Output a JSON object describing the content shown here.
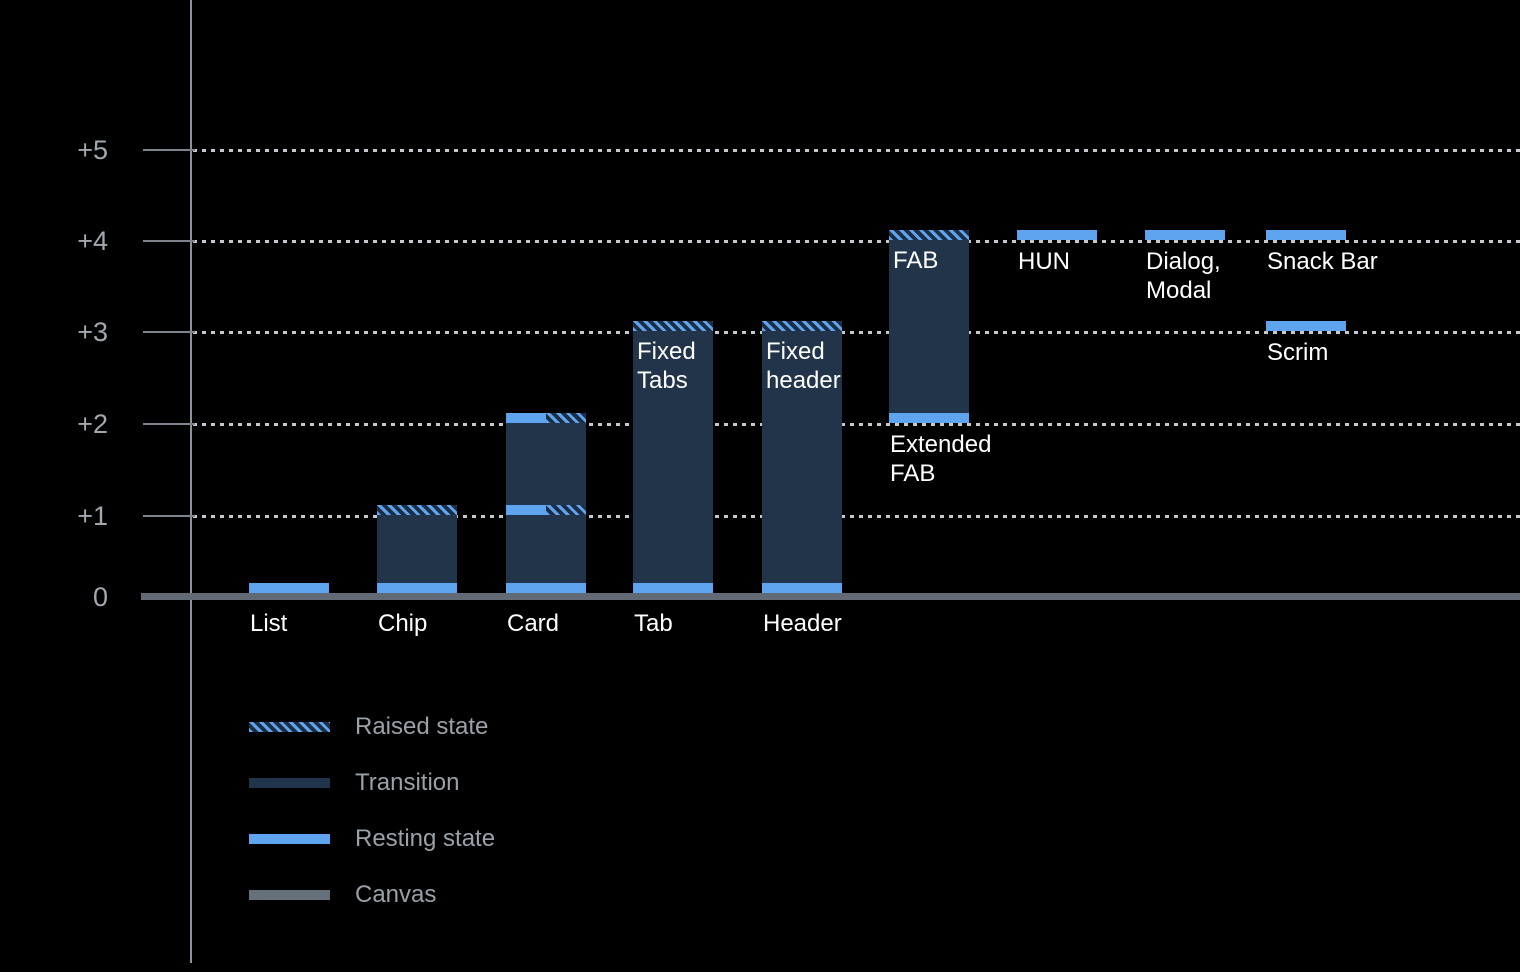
{
  "chart_data": {
    "type": "bar",
    "title": "",
    "description": "Elevation diagram of UI components on a dark canvas; bars show resting state, raised state and transition ranges between elevation levels.",
    "y_axis": {
      "range": [
        0,
        5
      ],
      "ticks": [
        {
          "label": "+5",
          "level": 5
        },
        {
          "label": "+4",
          "level": 4
        },
        {
          "label": "+3",
          "level": 3
        },
        {
          "label": "+2",
          "level": 2
        },
        {
          "label": "+1",
          "level": 1
        },
        {
          "label": "0",
          "level": 0
        }
      ]
    },
    "grid": {
      "style": "dotted",
      "levels": [
        1,
        2,
        3,
        4,
        5
      ]
    },
    "components": [
      {
        "name": "list",
        "label": "List",
        "label_pos": "baseline",
        "col": 0,
        "bands": [
          {
            "level": 0,
            "style": "resting"
          }
        ]
      },
      {
        "name": "chip",
        "label": "Chip",
        "label_pos": "baseline",
        "col": 1,
        "transition": [
          0,
          1
        ],
        "bands": [
          {
            "level": 1,
            "style": "raised"
          },
          {
            "level": 0,
            "style": "resting"
          }
        ]
      },
      {
        "name": "card",
        "label": "Card",
        "label_pos": "baseline",
        "col": 2,
        "transition": [
          0,
          2
        ],
        "bands": [
          {
            "level": 2,
            "style": "resting+raised"
          },
          {
            "level": 1,
            "style": "resting+raised"
          },
          {
            "level": 0,
            "style": "resting"
          }
        ]
      },
      {
        "name": "tab",
        "label": "Tab",
        "label_pos": "baseline",
        "col": 3,
        "inner_label": "Fixed\nTabs",
        "transition": [
          0,
          3
        ],
        "bands": [
          {
            "level": 3,
            "style": "raised"
          },
          {
            "level": 0,
            "style": "resting"
          }
        ]
      },
      {
        "name": "header",
        "label": "Header",
        "label_pos": "baseline",
        "col": 4,
        "inner_label": "Fixed\nheader",
        "transition": [
          0,
          3
        ],
        "bands": [
          {
            "level": 3,
            "style": "raised"
          },
          {
            "level": 0,
            "style": "resting"
          }
        ]
      },
      {
        "name": "extended-fab",
        "label": "Extended\nFAB",
        "label_pos": "below-bar",
        "col": 5,
        "inner_label": "FAB",
        "transition": [
          2,
          4
        ],
        "bands": [
          {
            "level": 4,
            "style": "raised"
          },
          {
            "level": 2,
            "style": "resting"
          }
        ]
      },
      {
        "name": "hun",
        "label": "HUN",
        "label_pos": "below-bar",
        "col": 6,
        "bands": [
          {
            "level": 4,
            "style": "resting"
          }
        ]
      },
      {
        "name": "dialog-modal",
        "label": "Dialog,\nModal",
        "label_pos": "below-bar",
        "col": 7,
        "bands": [
          {
            "level": 4,
            "style": "resting"
          }
        ]
      },
      {
        "name": "snack-bar",
        "label": "Snack Bar",
        "label_pos": "below-bar",
        "col": 8,
        "bands": [
          {
            "level": 4,
            "style": "resting"
          }
        ]
      },
      {
        "name": "scrim",
        "label": "Scrim",
        "label_pos": "below-bar",
        "col": 8,
        "bands": [
          {
            "level": 3,
            "style": "resting"
          }
        ]
      }
    ],
    "legend": {
      "position": "bottom-left",
      "entries": [
        {
          "label": "Raised state",
          "swatch": "hatch"
        },
        {
          "label": "Transition",
          "swatch": "dark"
        },
        {
          "label": "Resting state",
          "swatch": "blue"
        },
        {
          "label": "Canvas",
          "swatch": "gray"
        }
      ]
    },
    "colors": {
      "background": "#000000",
      "resting_state": "#5fa4ee",
      "transition": "#22344a",
      "hatch_base": "#1c2e44",
      "canvas": "#626b75",
      "axis": "#8d939c",
      "gridline_dots": "#c4c9ce",
      "tick_text": "#a2a8af",
      "legend_text": "#9ba1a9",
      "component_text": "#ffffff"
    }
  }
}
